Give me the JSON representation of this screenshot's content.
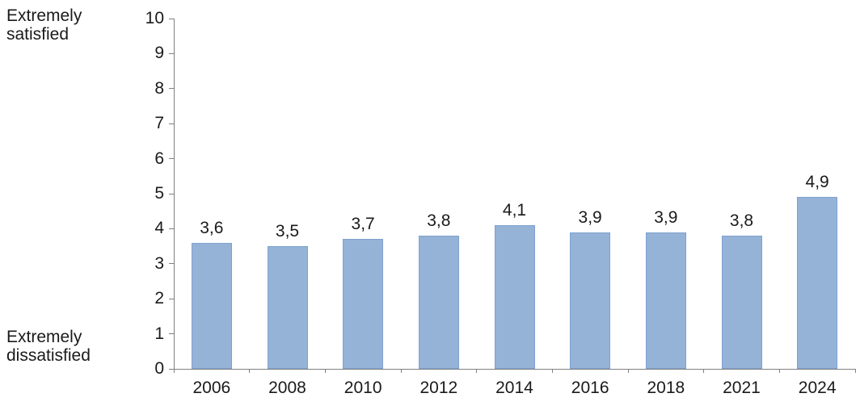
{
  "chart_data": {
    "type": "bar",
    "categories": [
      "2006",
      "2008",
      "2010",
      "2012",
      "2014",
      "2016",
      "2018",
      "2021",
      "2024"
    ],
    "values": [
      3.6,
      3.5,
      3.7,
      3.8,
      4.1,
      3.9,
      3.9,
      3.8,
      4.9
    ],
    "value_labels": [
      "3,6",
      "3,5",
      "3,7",
      "3,8",
      "4,1",
      "3,9",
      "3,9",
      "3,8",
      "4,9"
    ],
    "title": "",
    "xlabel": "",
    "ylabel": "",
    "ylim": [
      0,
      10
    ],
    "y_ticks": [
      0,
      1,
      2,
      3,
      4,
      5,
      6,
      7,
      8,
      9,
      10
    ],
    "grid": false,
    "legend": false,
    "y_axis_annotations": {
      "top": [
        "Extremely",
        "satisfied"
      ],
      "bottom": [
        "Extremely",
        "dissatisfied"
      ]
    },
    "colors": {
      "bar_fill": "#95B3D7",
      "bar_border": "#7FA1CE",
      "axis": "#808080",
      "text": "#1A1A1A"
    }
  }
}
